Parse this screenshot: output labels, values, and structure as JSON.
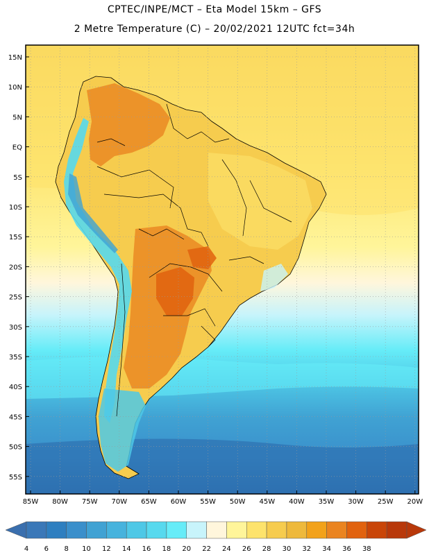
{
  "title_line1": "CPTEC/INPE/MCT  –   Eta Model 15km  –  GFS",
  "title_line2": "2 Metre Temperature (C)  –  20/02/2021 12UTC fct=34h",
  "lat_labels": [
    "15N",
    "10N",
    "5N",
    "EQ",
    "5S",
    "10S",
    "15S",
    "20S",
    "25S",
    "30S",
    "35S",
    "40S",
    "45S",
    "50S",
    "55S"
  ],
  "lon_labels": [
    "85W",
    "80W",
    "75W",
    "70W",
    "65W",
    "60W",
    "55W",
    "50W",
    "45W",
    "40W",
    "35W",
    "30W",
    "25W",
    "20W"
  ],
  "legend": {
    "values": [
      "4",
      "6",
      "8",
      "10",
      "12",
      "14",
      "16",
      "18",
      "20",
      "22",
      "24",
      "26",
      "28",
      "30",
      "32",
      "34",
      "36",
      "38"
    ],
    "colors": [
      "#3a78b8",
      "#2e7fc0",
      "#3a8fcb",
      "#40a2d3",
      "#46b3dd",
      "#4ec8e6",
      "#57d9ee",
      "#66ecf8",
      "#c8f4fb",
      "#fff6dc",
      "#fff59a",
      "#fde36c",
      "#f6cc4e",
      "#eeb93b",
      "#f2a21a",
      "#ea8420",
      "#e1620e",
      "#c94508",
      "#b8380a"
    ],
    "left_arrow_color": "#3a6fae",
    "right_arrow_color": "#b8380a"
  }
}
